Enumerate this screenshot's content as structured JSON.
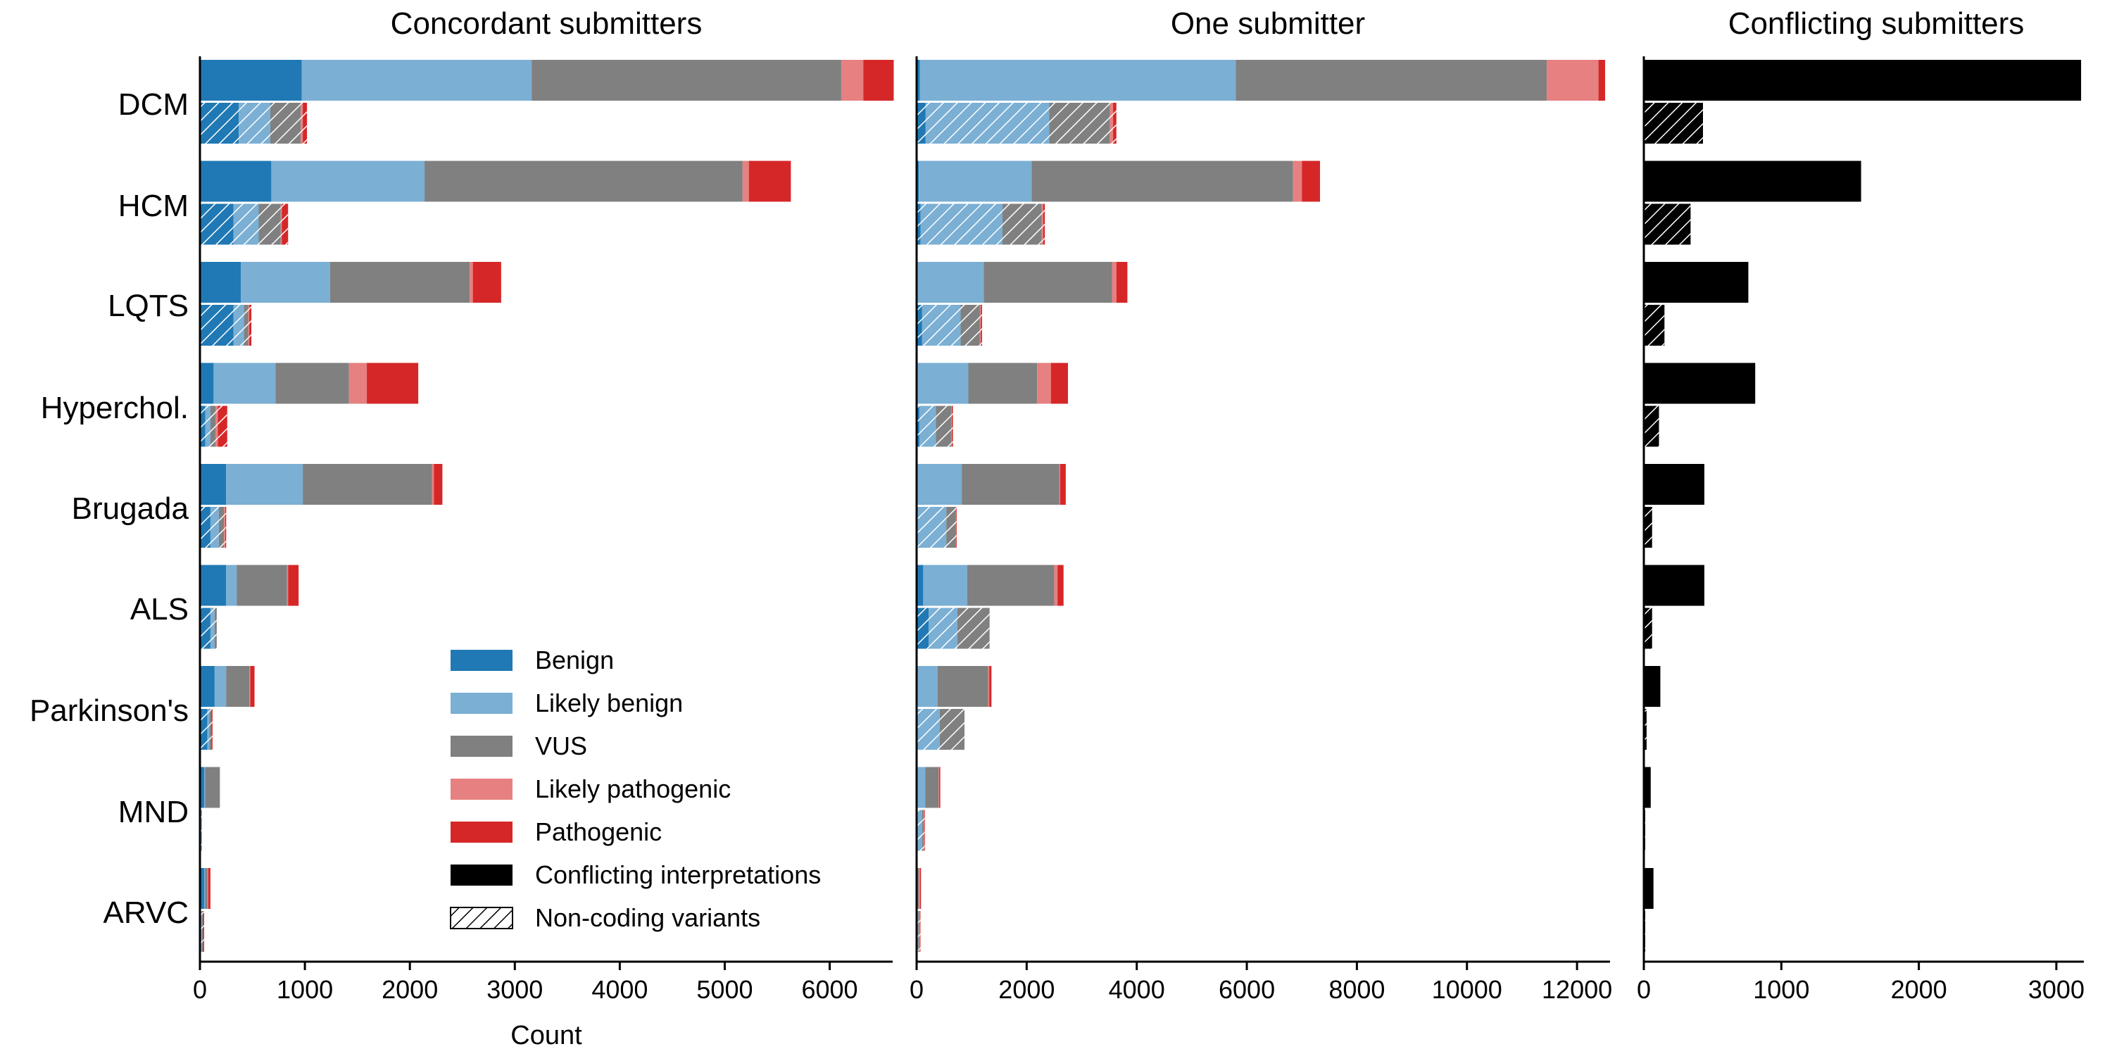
{
  "colors": {
    "benign": "#2079b4",
    "likely_benign": "#7bafd4",
    "vus": "#808080",
    "likely_pathogenic": "#e78080",
    "pathogenic": "#d62728",
    "conflicting": "#000000"
  },
  "chart_data": [
    {
      "type": "bar",
      "orientation": "horizontal",
      "stacked": true,
      "title": "Concordant submitters",
      "xlabel": "Count",
      "xlim": [
        0,
        6600
      ],
      "xticks": [
        0,
        1000,
        2000,
        3000,
        4000,
        5000,
        6000
      ],
      "categories": [
        "DCM",
        "HCM",
        "LQTS",
        "Hyperchol.",
        "Brugada",
        "ALS",
        "Parkinson's",
        "MND",
        "ARVC"
      ],
      "series": [
        {
          "name": "Benign",
          "key": "benign",
          "values": [
            970,
            680,
            390,
            130,
            250,
            250,
            140,
            40,
            40
          ]
        },
        {
          "name": "Likely benign",
          "key": "likely_benign",
          "values": [
            2190,
            1460,
            850,
            590,
            730,
            100,
            110,
            10,
            10
          ]
        },
        {
          "name": "VUS",
          "key": "vus",
          "values": [
            2950,
            3030,
            1330,
            700,
            1230,
            480,
            220,
            140,
            20
          ]
        },
        {
          "name": "Likely pathogenic",
          "key": "likely_pathogenic",
          "values": [
            210,
            60,
            30,
            170,
            20,
            10,
            10,
            0,
            10
          ]
        },
        {
          "name": "Pathogenic",
          "key": "pathogenic",
          "values": [
            290,
            400,
            270,
            490,
            80,
            100,
            40,
            0,
            20
          ]
        }
      ],
      "noncoding_series": [
        {
          "key": "benign",
          "values": [
            370,
            320,
            320,
            50,
            100,
            100,
            70,
            10,
            10
          ]
        },
        {
          "key": "likely_benign",
          "values": [
            300,
            240,
            100,
            50,
            80,
            40,
            20,
            10,
            10
          ]
        },
        {
          "key": "vus",
          "values": [
            290,
            210,
            40,
            50,
            50,
            20,
            20,
            0,
            10
          ]
        },
        {
          "key": "likely_pathogenic",
          "values": [
            20,
            10,
            10,
            20,
            10,
            0,
            0,
            0,
            0
          ]
        },
        {
          "key": "pathogenic",
          "values": [
            40,
            60,
            20,
            90,
            10,
            0,
            10,
            0,
            10
          ]
        }
      ]
    },
    {
      "type": "bar",
      "orientation": "horizontal",
      "stacked": true,
      "title": "One submitter",
      "xlabel": "",
      "xlim": [
        0,
        12600
      ],
      "xticks": [
        0,
        2000,
        4000,
        6000,
        8000,
        10000,
        12000
      ],
      "categories": [
        "DCM",
        "HCM",
        "LQTS",
        "Hyperchol.",
        "Brugada",
        "ALS",
        "Parkinson's",
        "MND",
        "ARVC"
      ],
      "series": [
        {
          "name": "Benign",
          "key": "benign",
          "values": [
            60,
            40,
            20,
            20,
            20,
            120,
            20,
            20,
            10
          ]
        },
        {
          "name": "Likely benign",
          "key": "likely_benign",
          "values": [
            5740,
            2050,
            1200,
            920,
            800,
            800,
            360,
            140,
            10
          ]
        },
        {
          "name": "VUS",
          "key": "vus",
          "values": [
            5650,
            4750,
            2330,
            1250,
            1770,
            1580,
            920,
            240,
            20
          ]
        },
        {
          "name": "Likely pathogenic",
          "key": "likely_pathogenic",
          "values": [
            940,
            160,
            80,
            250,
            20,
            60,
            20,
            10,
            20
          ]
        },
        {
          "name": "Pathogenic",
          "key": "pathogenic",
          "values": [
            120,
            330,
            200,
            310,
            100,
            110,
            40,
            20,
            20
          ]
        }
      ],
      "noncoding_series": [
        {
          "key": "benign",
          "values": [
            160,
            70,
            100,
            50,
            20,
            220,
            20,
            20,
            10
          ]
        },
        {
          "key": "likely_benign",
          "values": [
            2250,
            1490,
            700,
            300,
            520,
            520,
            400,
            80,
            20
          ]
        },
        {
          "key": "vus",
          "values": [
            1100,
            710,
            350,
            280,
            170,
            580,
            450,
            30,
            20
          ]
        },
        {
          "key": "likely_pathogenic",
          "values": [
            60,
            30,
            20,
            10,
            10,
            10,
            0,
            10,
            10
          ]
        },
        {
          "key": "pathogenic",
          "values": [
            60,
            30,
            20,
            20,
            10,
            0,
            0,
            10,
            10
          ]
        }
      ]
    },
    {
      "type": "bar",
      "orientation": "horizontal",
      "title": "Conflicting submitters",
      "xlabel": "",
      "xlim": [
        0,
        3200
      ],
      "xticks": [
        0,
        1000,
        2000,
        3000
      ],
      "categories": [
        "DCM",
        "HCM",
        "LQTS",
        "Hyperchol.",
        "Brugada",
        "ALS",
        "Parkinson's",
        "MND",
        "ARVC"
      ],
      "series": [
        {
          "name": "Conflicting interpretations",
          "key": "conflicting",
          "values": [
            3180,
            1580,
            760,
            810,
            440,
            440,
            120,
            50,
            70
          ]
        }
      ],
      "noncoding_series": [
        {
          "key": "conflicting",
          "values": [
            430,
            340,
            150,
            110,
            60,
            60,
            20,
            10,
            10
          ]
        }
      ]
    }
  ],
  "legend": {
    "position": "lower-right of first panel",
    "items": [
      {
        "label": "Benign",
        "key": "benign",
        "hatched": false
      },
      {
        "label": "Likely benign",
        "key": "likely_benign",
        "hatched": false
      },
      {
        "label": "VUS",
        "key": "vus",
        "hatched": false
      },
      {
        "label": "Likely pathogenic",
        "key": "likely_pathogenic",
        "hatched": false
      },
      {
        "label": "Pathogenic",
        "key": "pathogenic",
        "hatched": false
      },
      {
        "label": "Conflicting interpretations",
        "key": "conflicting",
        "hatched": false
      },
      {
        "label": "Non-coding variants",
        "key": "none",
        "hatched": true
      }
    ]
  }
}
